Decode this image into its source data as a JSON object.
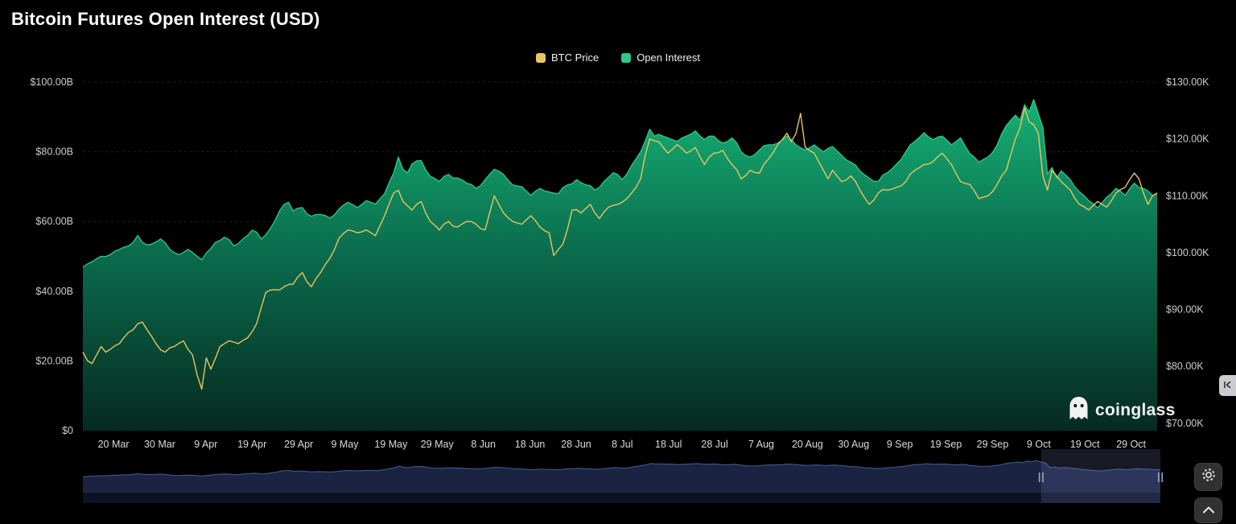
{
  "title": "Bitcoin Futures Open Interest (USD)",
  "legend": {
    "items": [
      {
        "label": "BTC Price",
        "color": "#e9c462"
      },
      {
        "label": "Open Interest",
        "color": "#2fc98c"
      }
    ]
  },
  "watermark": {
    "text": "coinglass"
  },
  "icons": {
    "settings": "gear-icon",
    "scroll_top": "chevron-up-icon",
    "panel_toggle": "collapse-arrows-icon",
    "watermark": "ghost-icon"
  },
  "chart_data": {
    "type": "area",
    "title": "Bitcoin Futures Open Interest (USD)",
    "x_min": 0,
    "x_max": 235,
    "grid": true,
    "legend_position": "top-center",
    "left_axis": {
      "unit": "USD billions",
      "min": 0,
      "max": 100,
      "ticks": [
        {
          "v": 0,
          "label": "$0"
        },
        {
          "v": 20,
          "label": "$20.00B"
        },
        {
          "v": 40,
          "label": "$40.00B"
        },
        {
          "v": 60,
          "label": "$60.00B"
        },
        {
          "v": 80,
          "label": "$80.00B"
        },
        {
          "v": 100,
          "label": "$100.00B"
        }
      ]
    },
    "right_axis": {
      "unit": "USD thousands",
      "min": 68.7,
      "max": 130,
      "ticks": [
        {
          "v": 70,
          "label": "$70.00K"
        },
        {
          "v": 80,
          "label": "$80.00K"
        },
        {
          "v": 90,
          "label": "$90.00K"
        },
        {
          "v": 100,
          "label": "$100.00K"
        },
        {
          "v": 110,
          "label": "$110.00K"
        },
        {
          "v": 120,
          "label": "$120.00K"
        },
        {
          "v": 130,
          "label": "$130.00K"
        }
      ]
    },
    "x_ticks": [
      {
        "d": 6.7,
        "label": "20 Mar"
      },
      {
        "d": 16.8,
        "label": "30 Mar"
      },
      {
        "d": 26.9,
        "label": "9 Apr"
      },
      {
        "d": 37.0,
        "label": "19 Apr"
      },
      {
        "d": 47.2,
        "label": "29 Apr"
      },
      {
        "d": 57.3,
        "label": "9 May"
      },
      {
        "d": 67.4,
        "label": "19 May"
      },
      {
        "d": 77.5,
        "label": "29 May"
      },
      {
        "d": 87.6,
        "label": "8 Jun"
      },
      {
        "d": 97.8,
        "label": "18 Jun"
      },
      {
        "d": 107.9,
        "label": "28 Jun"
      },
      {
        "d": 118.0,
        "label": "8 Jul"
      },
      {
        "d": 128.1,
        "label": "18 Jul"
      },
      {
        "d": 138.2,
        "label": "28 Jul"
      },
      {
        "d": 148.4,
        "label": "7 Aug"
      },
      {
        "d": 158.5,
        "label": "20 Aug"
      },
      {
        "d": 168.6,
        "label": "30 Aug"
      },
      {
        "d": 178.7,
        "label": "9 Sep"
      },
      {
        "d": 188.8,
        "label": "19 Sep"
      },
      {
        "d": 199.0,
        "label": "29 Sep"
      },
      {
        "d": 209.1,
        "label": "9 Oct"
      },
      {
        "d": 219.2,
        "label": "19 Oct"
      },
      {
        "d": 229.3,
        "label": "29 Oct"
      }
    ],
    "series": [
      {
        "name": "Open Interest",
        "axis": "left",
        "type": "area",
        "color": "#2fc98c",
        "noise": 0.8,
        "fill_stops": [
          [
            "0%",
            "#17b87a"
          ],
          [
            "45%",
            "#0b7251"
          ],
          [
            "100%",
            "#062c22"
          ]
        ],
        "points": [
          [
            0,
            47
          ],
          [
            2,
            48.5
          ],
          [
            4,
            50
          ],
          [
            6,
            50.5
          ],
          [
            8,
            52
          ],
          [
            10,
            53
          ],
          [
            12,
            56
          ],
          [
            13,
            54
          ],
          [
            15,
            53.5
          ],
          [
            17,
            55
          ],
          [
            19,
            52
          ],
          [
            21,
            50.5
          ],
          [
            23,
            52
          ],
          [
            25,
            50
          ],
          [
            26,
            49
          ],
          [
            27,
            51
          ],
          [
            29,
            54
          ],
          [
            31,
            55.5
          ],
          [
            33,
            53
          ],
          [
            35,
            55
          ],
          [
            37,
            57.5
          ],
          [
            39,
            55
          ],
          [
            41,
            58
          ],
          [
            43,
            63
          ],
          [
            45,
            65.5
          ],
          [
            46,
            63
          ],
          [
            48,
            64
          ],
          [
            50,
            61.5
          ],
          [
            52,
            62
          ],
          [
            54,
            61
          ],
          [
            56,
            63.5
          ],
          [
            58,
            65.5
          ],
          [
            60,
            64
          ],
          [
            62,
            66
          ],
          [
            64,
            65
          ],
          [
            66,
            68
          ],
          [
            68,
            74
          ],
          [
            69,
            78.5
          ],
          [
            70,
            75
          ],
          [
            71,
            74
          ],
          [
            72,
            76.5
          ],
          [
            74,
            77.5
          ],
          [
            76,
            73
          ],
          [
            78,
            71.5
          ],
          [
            80,
            73.5
          ],
          [
            82,
            72.5
          ],
          [
            84,
            71
          ],
          [
            86,
            69.5
          ],
          [
            88,
            72
          ],
          [
            90,
            75
          ],
          [
            92,
            73.5
          ],
          [
            94,
            70.5
          ],
          [
            96,
            70
          ],
          [
            98,
            67.5
          ],
          [
            100,
            69.5
          ],
          [
            102,
            68.5
          ],
          [
            104,
            68
          ],
          [
            106,
            70.5
          ],
          [
            108,
            72
          ],
          [
            110,
            70.5
          ],
          [
            112,
            69
          ],
          [
            114,
            71.5
          ],
          [
            116,
            74
          ],
          [
            118,
            72
          ],
          [
            120,
            76
          ],
          [
            122,
            80
          ],
          [
            123,
            83
          ],
          [
            124,
            86.5
          ],
          [
            125,
            84.5
          ],
          [
            126,
            85
          ],
          [
            128,
            84
          ],
          [
            130,
            83
          ],
          [
            132,
            84.5
          ],
          [
            134,
            86
          ],
          [
            136,
            83.5
          ],
          [
            138,
            84.5
          ],
          [
            140,
            82.5
          ],
          [
            142,
            84
          ],
          [
            144,
            80
          ],
          [
            146,
            78.5
          ],
          [
            148,
            80.5
          ],
          [
            150,
            82
          ],
          [
            152,
            82.5
          ],
          [
            154,
            84.5
          ],
          [
            156,
            82
          ],
          [
            158,
            80.5
          ],
          [
            160,
            82
          ],
          [
            162,
            80
          ],
          [
            164,
            81.5
          ],
          [
            166,
            79
          ],
          [
            168,
            77
          ],
          [
            170,
            74.5
          ],
          [
            172,
            72.5
          ],
          [
            174,
            71.5
          ],
          [
            176,
            74
          ],
          [
            178,
            76.5
          ],
          [
            180,
            80
          ],
          [
            182,
            83
          ],
          [
            184,
            85.5
          ],
          [
            186,
            83.5
          ],
          [
            188,
            84.5
          ],
          [
            190,
            82
          ],
          [
            192,
            84
          ],
          [
            194,
            79.5
          ],
          [
            196,
            77
          ],
          [
            198,
            78.5
          ],
          [
            200,
            82
          ],
          [
            202,
            87.5
          ],
          [
            204,
            90.5
          ],
          [
            205,
            89
          ],
          [
            206,
            93.5
          ],
          [
            207,
            91.5
          ],
          [
            208,
            95
          ],
          [
            209,
            91
          ],
          [
            210,
            87
          ],
          [
            211,
            73.5
          ],
          [
            212,
            75.5
          ],
          [
            213,
            72.5
          ],
          [
            214,
            74.5
          ],
          [
            216,
            72
          ],
          [
            218,
            68.5
          ],
          [
            220,
            66
          ],
          [
            222,
            64
          ],
          [
            224,
            67
          ],
          [
            226,
            69.5
          ],
          [
            228,
            67.5
          ],
          [
            230,
            71
          ],
          [
            232,
            69.5
          ],
          [
            234,
            67.5
          ],
          [
            235,
            68
          ]
        ]
      },
      {
        "name": "BTC Price",
        "axis": "right",
        "type": "line",
        "color": "#e9c462",
        "noise": 0.5,
        "points": [
          [
            0,
            82.5
          ],
          [
            1,
            81
          ],
          [
            2,
            80.5
          ],
          [
            3,
            82
          ],
          [
            4,
            83.5
          ],
          [
            5,
            82.5
          ],
          [
            6,
            83
          ],
          [
            8,
            84
          ],
          [
            10,
            86
          ],
          [
            12,
            87.5
          ],
          [
            13,
            87.8
          ],
          [
            14,
            86.5
          ],
          [
            16,
            84
          ],
          [
            18,
            82.5
          ],
          [
            20,
            83.5
          ],
          [
            22,
            84.5
          ],
          [
            24,
            82
          ],
          [
            25,
            78.5
          ],
          [
            26,
            76
          ],
          [
            27,
            81.5
          ],
          [
            28,
            79.5
          ],
          [
            30,
            83.5
          ],
          [
            32,
            84.5
          ],
          [
            34,
            84
          ],
          [
            36,
            85
          ],
          [
            38,
            87.5
          ],
          [
            40,
            93
          ],
          [
            42,
            93.5
          ],
          [
            44,
            94
          ],
          [
            46,
            94.5
          ],
          [
            48,
            96.5
          ],
          [
            50,
            94
          ],
          [
            52,
            96.5
          ],
          [
            54,
            99
          ],
          [
            56,
            102.5
          ],
          [
            58,
            104
          ],
          [
            60,
            103.5
          ],
          [
            62,
            104
          ],
          [
            64,
            103
          ],
          [
            66,
            106.5
          ],
          [
            68,
            110.5
          ],
          [
            69,
            111
          ],
          [
            70,
            109
          ],
          [
            72,
            107.5
          ],
          [
            74,
            109
          ],
          [
            76,
            105.5
          ],
          [
            78,
            104
          ],
          [
            80,
            105.5
          ],
          [
            82,
            104.5
          ],
          [
            84,
            105.5
          ],
          [
            86,
            105
          ],
          [
            88,
            104
          ],
          [
            90,
            110
          ],
          [
            91,
            108.5
          ],
          [
            92,
            107
          ],
          [
            94,
            105.5
          ],
          [
            96,
            105
          ],
          [
            98,
            106.5
          ],
          [
            100,
            104.5
          ],
          [
            102,
            103.5
          ],
          [
            103,
            99.5
          ],
          [
            105,
            101.5
          ],
          [
            107,
            107.5
          ],
          [
            109,
            107
          ],
          [
            111,
            108.5
          ],
          [
            113,
            106
          ],
          [
            115,
            108
          ],
          [
            117,
            108.5
          ],
          [
            119,
            109.5
          ],
          [
            121,
            111.5
          ],
          [
            122,
            113
          ],
          [
            123,
            117
          ],
          [
            124,
            120
          ],
          [
            126,
            119.5
          ],
          [
            128,
            117.5
          ],
          [
            130,
            119
          ],
          [
            132,
            117.5
          ],
          [
            134,
            118.5
          ],
          [
            136,
            115.5
          ],
          [
            138,
            117.5
          ],
          [
            140,
            118
          ],
          [
            142,
            115.5
          ],
          [
            144,
            113
          ],
          [
            146,
            114.5
          ],
          [
            148,
            114
          ],
          [
            150,
            116.5
          ],
          [
            152,
            119
          ],
          [
            154,
            121
          ],
          [
            155,
            119.5
          ],
          [
            156,
            121
          ],
          [
            157,
            124.5
          ],
          [
            158,
            118.5
          ],
          [
            160,
            117.5
          ],
          [
            162,
            114.5
          ],
          [
            163,
            113
          ],
          [
            164,
            114.5
          ],
          [
            166,
            112.5
          ],
          [
            168,
            113.5
          ],
          [
            170,
            111
          ],
          [
            172,
            108.5
          ],
          [
            174,
            110.5
          ],
          [
            176,
            111
          ],
          [
            178,
            111.5
          ],
          [
            180,
            112.5
          ],
          [
            182,
            114.5
          ],
          [
            184,
            115.5
          ],
          [
            186,
            116
          ],
          [
            188,
            117.5
          ],
          [
            190,
            115.5
          ],
          [
            192,
            112.5
          ],
          [
            194,
            112
          ],
          [
            196,
            109.5
          ],
          [
            198,
            110
          ],
          [
            200,
            112
          ],
          [
            202,
            114.5
          ],
          [
            204,
            120
          ],
          [
            205,
            122
          ],
          [
            206,
            125.5
          ],
          [
            207,
            123
          ],
          [
            208,
            122.5
          ],
          [
            209,
            121
          ],
          [
            210,
            113.5
          ],
          [
            211,
            111
          ],
          [
            212,
            114.5
          ],
          [
            213,
            113.5
          ],
          [
            214,
            112.5
          ],
          [
            216,
            111
          ],
          [
            218,
            108.5
          ],
          [
            220,
            107.5
          ],
          [
            222,
            109
          ],
          [
            224,
            108
          ],
          [
            226,
            110.5
          ],
          [
            228,
            111.5
          ],
          [
            230,
            114
          ],
          [
            231,
            113
          ],
          [
            232,
            110.5
          ],
          [
            233,
            108.5
          ],
          [
            234,
            110
          ],
          [
            235,
            110.5
          ]
        ]
      }
    ],
    "navigator": {
      "fill": "#1a2342",
      "line": "#4a5b94",
      "bar_color": "#0d1326",
      "selection_color": "rgba(125,145,205,0.18)",
      "handle_color": "#9aa6c8",
      "selection_start": 209,
      "selection_end": 235
    }
  }
}
